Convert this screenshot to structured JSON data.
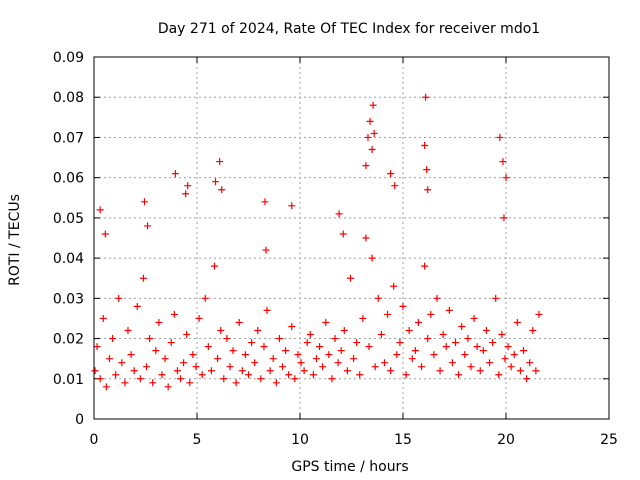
{
  "chart_data": {
    "type": "scatter",
    "title": "Day 271 of 2024, Rate Of TEC Index for receiver mdo1",
    "xlabel": "GPS time / hours",
    "ylabel": "ROTI / TECUs",
    "xlim": [
      0,
      25
    ],
    "ylim": [
      0,
      0.09
    ],
    "x_ticks": [
      0,
      5,
      10,
      15,
      20,
      25
    ],
    "y_ticks": [
      0,
      0.01,
      0.02,
      0.03,
      0.04,
      0.05,
      0.06,
      0.07,
      0.08,
      0.09
    ],
    "x_tick_labels": [
      "0",
      "5",
      "10",
      "15",
      "20",
      "25"
    ],
    "y_tick_labels": [
      "0",
      "0.01",
      "0.02",
      "0.03",
      "0.04",
      "0.05",
      "0.06",
      "0.07",
      "0.08",
      "0.09"
    ],
    "grid": true,
    "marker": "+",
    "colors": {
      "series": "#ff0000",
      "grid": "#a0a0a0",
      "axis": "#000000"
    },
    "series": [
      {
        "x": [
          0.05,
          0.15,
          0.3,
          0.45,
          0.6,
          0.75,
          0.9,
          1.05,
          1.2,
          1.35,
          1.5,
          1.65,
          1.8,
          1.95,
          2.1,
          2.25,
          2.4,
          2.55,
          2.7,
          2.85,
          3.0,
          3.15,
          3.3,
          3.45,
          3.6,
          3.75,
          3.9,
          4.05,
          4.2,
          4.35,
          4.5,
          4.65,
          4.8,
          4.95,
          5.1,
          5.25,
          5.4,
          5.55,
          5.7,
          5.85,
          6.0,
          6.15,
          6.3,
          6.45,
          6.6,
          6.75,
          6.9,
          7.05,
          7.2,
          7.35,
          7.5,
          7.65,
          7.8,
          7.95,
          8.1,
          8.25,
          8.4,
          8.55,
          8.7,
          8.85,
          9.0,
          9.15,
          9.3,
          9.45,
          9.6,
          9.75,
          9.9,
          10.05,
          10.2,
          10.35,
          10.5,
          10.65,
          10.8,
          10.95,
          11.1,
          11.25,
          11.4,
          11.55,
          11.7,
          11.85,
          12.0,
          12.15,
          12.3,
          12.45,
          12.6,
          12.75,
          12.9,
          13.05,
          13.2,
          13.35,
          13.5,
          13.65,
          13.8,
          13.95,
          14.1,
          14.25,
          14.4,
          14.55,
          14.7,
          14.85,
          15.0,
          15.15,
          15.3,
          15.45,
          15.6,
          15.75,
          15.9,
          16.05,
          16.2,
          16.35,
          16.5,
          16.65,
          16.8,
          16.95,
          17.1,
          17.25,
          17.4,
          17.55,
          17.7,
          17.85,
          18.0,
          18.15,
          18.3,
          18.45,
          18.6,
          18.75,
          18.9,
          19.05,
          19.2,
          19.35,
          19.5,
          19.65,
          19.8,
          19.95,
          20.1,
          20.25,
          20.4,
          20.55,
          20.7,
          20.85,
          21.0,
          21.15,
          21.3,
          21.45,
          21.6,
          0.3,
          0.55,
          2.45,
          2.6,
          3.95,
          4.45,
          4.55,
          5.9,
          6.1,
          6.2,
          8.3,
          8.35,
          9.6,
          11.9,
          12.1,
          13.2,
          13.3,
          13.4,
          13.5,
          13.55,
          13.6,
          14.4,
          14.6,
          16.05,
          16.1,
          16.15,
          16.2,
          19.7,
          19.85,
          19.9,
          20.0
        ],
        "y": [
          0.012,
          0.018,
          0.01,
          0.025,
          0.008,
          0.015,
          0.02,
          0.011,
          0.03,
          0.014,
          0.009,
          0.022,
          0.016,
          0.012,
          0.028,
          0.01,
          0.035,
          0.013,
          0.02,
          0.009,
          0.017,
          0.024,
          0.011,
          0.015,
          0.008,
          0.019,
          0.026,
          0.012,
          0.01,
          0.014,
          0.021,
          0.009,
          0.016,
          0.013,
          0.025,
          0.011,
          0.03,
          0.018,
          0.012,
          0.038,
          0.015,
          0.022,
          0.01,
          0.02,
          0.013,
          0.017,
          0.009,
          0.024,
          0.012,
          0.016,
          0.011,
          0.019,
          0.014,
          0.022,
          0.01,
          0.018,
          0.027,
          0.012,
          0.015,
          0.009,
          0.02,
          0.013,
          0.017,
          0.011,
          0.023,
          0.01,
          0.016,
          0.014,
          0.012,
          0.019,
          0.021,
          0.011,
          0.015,
          0.018,
          0.013,
          0.024,
          0.016,
          0.01,
          0.02,
          0.014,
          0.017,
          0.022,
          0.012,
          0.035,
          0.015,
          0.019,
          0.011,
          0.025,
          0.045,
          0.018,
          0.04,
          0.013,
          0.03,
          0.021,
          0.014,
          0.026,
          0.012,
          0.033,
          0.016,
          0.019,
          0.028,
          0.011,
          0.022,
          0.015,
          0.017,
          0.024,
          0.013,
          0.038,
          0.02,
          0.026,
          0.016,
          0.03,
          0.012,
          0.021,
          0.018,
          0.027,
          0.014,
          0.019,
          0.011,
          0.023,
          0.016,
          0.02,
          0.013,
          0.025,
          0.018,
          0.012,
          0.017,
          0.022,
          0.014,
          0.019,
          0.03,
          0.011,
          0.021,
          0.015,
          0.018,
          0.013,
          0.016,
          0.024,
          0.012,
          0.017,
          0.01,
          0.014,
          0.022,
          0.012,
          0.026,
          0.052,
          0.046,
          0.054,
          0.048,
          0.061,
          0.056,
          0.058,
          0.059,
          0.064,
          0.057,
          0.054,
          0.042,
          0.053,
          0.051,
          0.046,
          0.063,
          0.07,
          0.074,
          0.067,
          0.078,
          0.071,
          0.061,
          0.058,
          0.068,
          0.08,
          0.062,
          0.057,
          0.07,
          0.064,
          0.05,
          0.06
        ]
      }
    ]
  }
}
